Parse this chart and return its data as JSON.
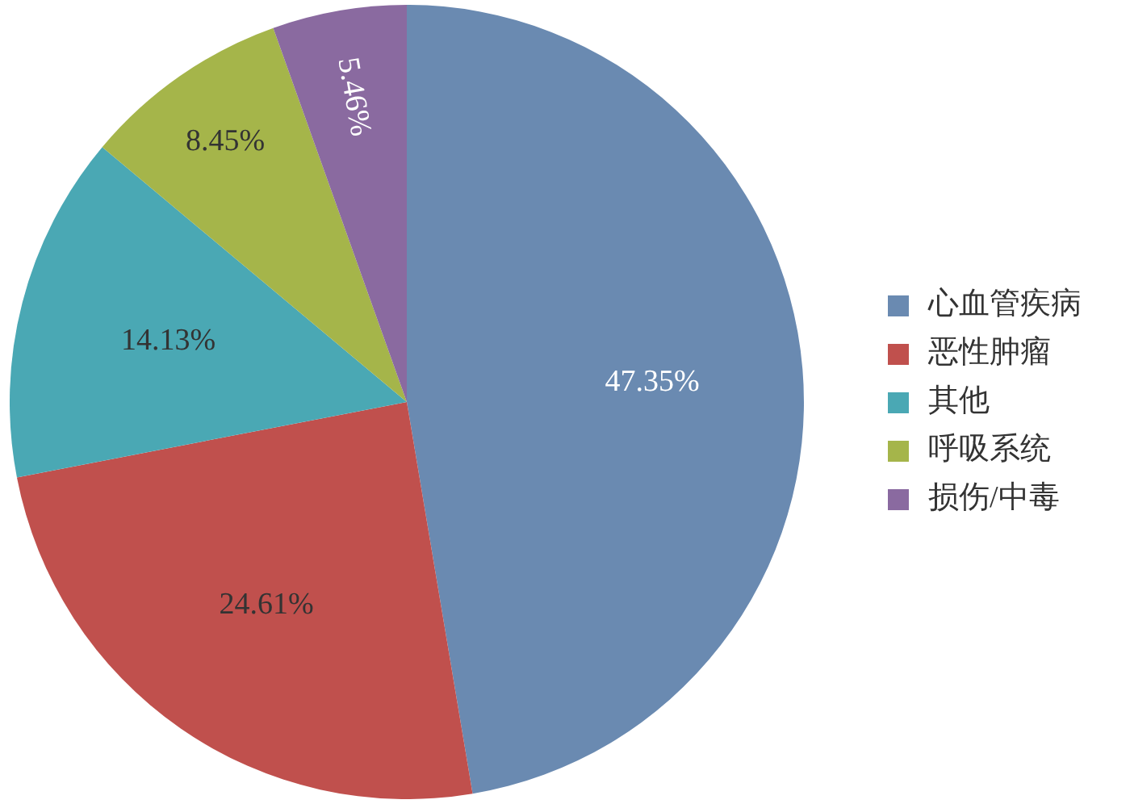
{
  "chart_data": {
    "type": "pie",
    "categories": [
      "心血管疾病",
      "恶性肿瘤",
      "其他",
      "呼吸系统",
      "损伤/中毒"
    ],
    "values": [
      47.35,
      24.61,
      14.13,
      8.45,
      5.46
    ],
    "colors": [
      "#6a8ab1",
      "#c0504d",
      "#4aa8b4",
      "#a5b54a",
      "#8a6aa0"
    ],
    "value_labels": [
      "47.35%",
      "24.61%",
      "14.13%",
      "8.45%",
      "5.46%"
    ],
    "legend": "right"
  }
}
